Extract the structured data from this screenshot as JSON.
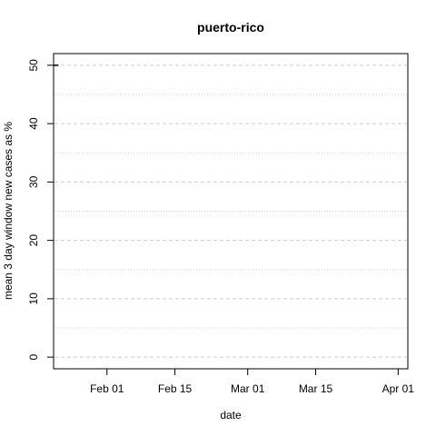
{
  "chart_data": {
    "type": "line",
    "title": "puerto-rico",
    "xlabel": "date",
    "ylabel": "mean  3  day window new cases as %",
    "x_tick_labels": [
      "Feb 01",
      "Feb 15",
      "Mar 01",
      "Mar 15",
      "Apr 01"
    ],
    "x_tick_dates": [
      "2020-02-01",
      "2020-02-15",
      "2020-03-01",
      "2020-03-15",
      "2020-04-01"
    ],
    "xlim": [
      "2020-01-21",
      "2020-04-03"
    ],
    "y_tick_labels": [
      "0",
      "10",
      "20",
      "30",
      "40",
      "50"
    ],
    "y_ticks": [
      0,
      10,
      20,
      30,
      40,
      50
    ],
    "ylim": [
      -2,
      52
    ],
    "grid": true,
    "series": [
      {
        "x": [
          "2020-01-21",
          "2020-01-22"
        ],
        "values": [
          50,
          50
        ]
      }
    ],
    "colors": {
      "line": "#000000",
      "major_grid": "#cccccc",
      "minor_grid": "#cccccc",
      "frame": "#000000"
    }
  }
}
